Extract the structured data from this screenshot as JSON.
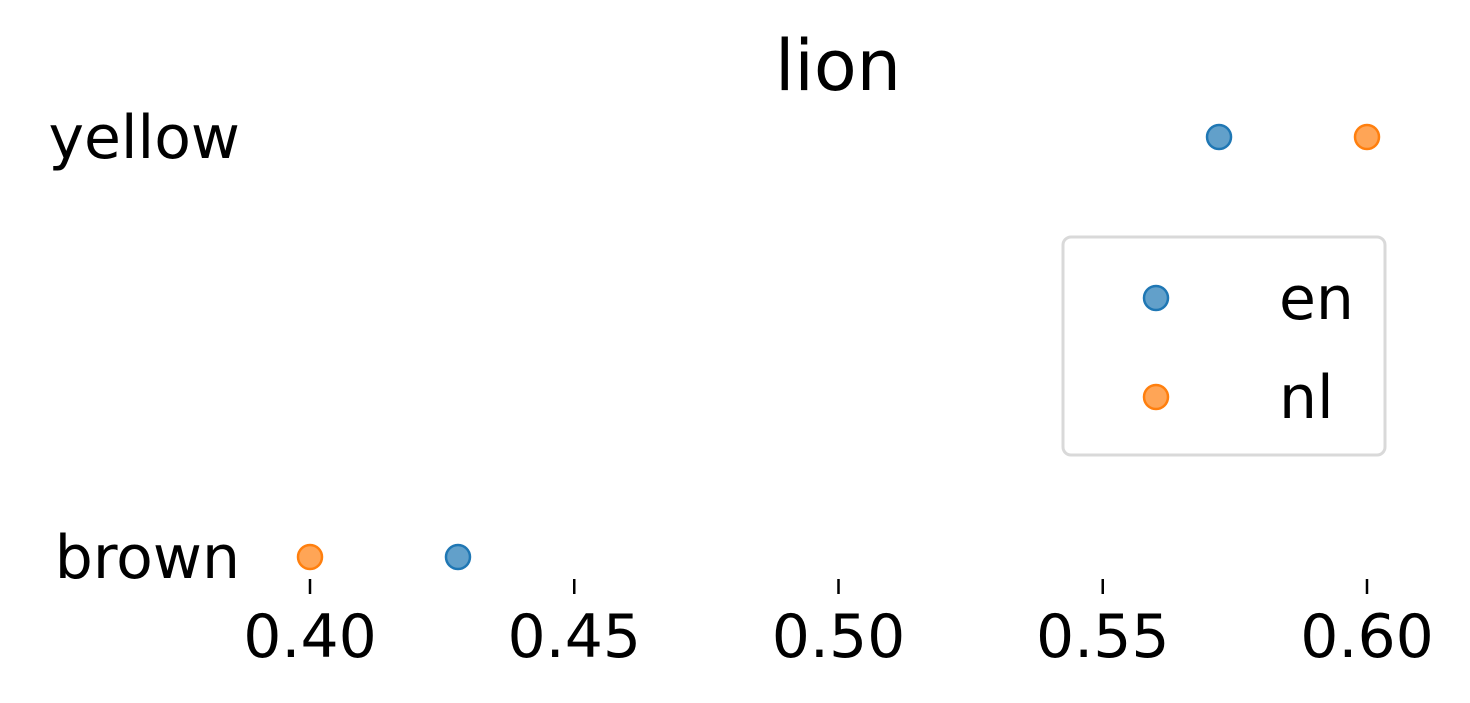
{
  "chart_data": {
    "type": "scatter",
    "title": "lion",
    "xlabel": "",
    "ylabel": "",
    "categories": [
      "brown",
      "yellow"
    ],
    "xlim": [
      0.388,
      0.615
    ],
    "x_ticks": [
      "0.40",
      "0.45",
      "0.50",
      "0.55",
      "0.60"
    ],
    "grid": false,
    "legend_position": "right",
    "series": [
      {
        "name": "en",
        "color": "#1f77b4",
        "values": [
          0.428,
          0.572
        ]
      },
      {
        "name": "nl",
        "color": "#ff7f0e",
        "values": [
          0.4,
          0.6
        ]
      }
    ]
  }
}
